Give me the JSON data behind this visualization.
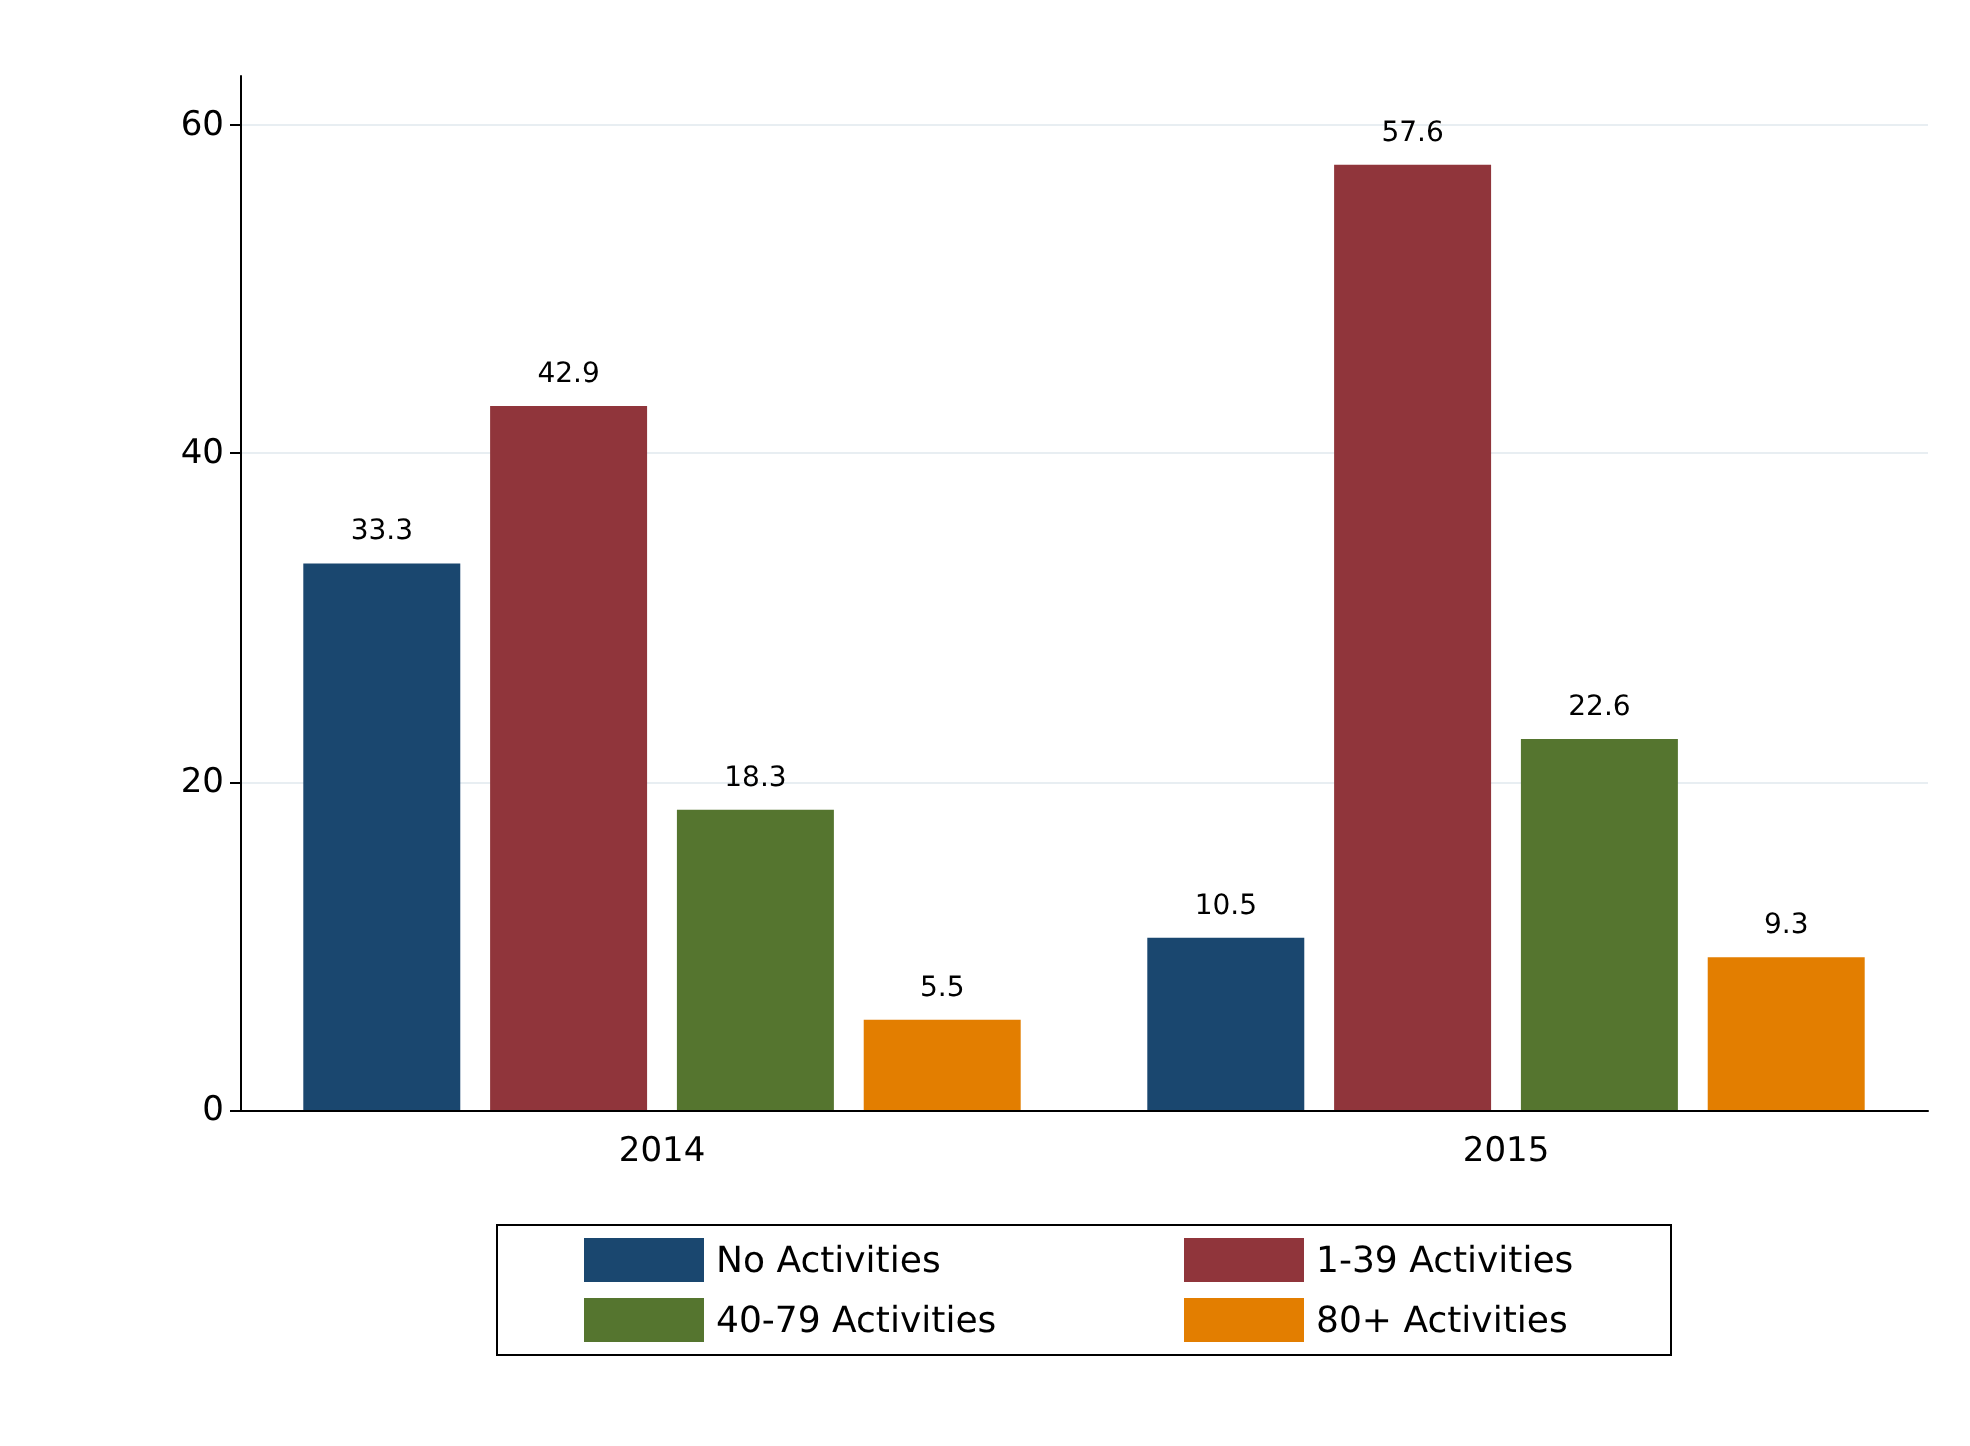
{
  "chart_data": {
    "type": "bar",
    "categories": [
      "2014",
      "2015"
    ],
    "series": [
      {
        "name": "No Activities",
        "color": "#1a476f",
        "values": [
          33.3,
          10.5
        ]
      },
      {
        "name": "1-39 Activities",
        "color": "#90353b",
        "values": [
          42.9,
          57.6
        ]
      },
      {
        "name": "40-79 Activities",
        "color": "#55752f",
        "values": [
          18.3,
          22.6
        ]
      },
      {
        "name": "80+ Activities",
        "color": "#e37e00",
        "values": [
          5.5,
          9.3
        ]
      }
    ],
    "ylim": [
      0,
      63
    ],
    "yticks": [
      0,
      20,
      40,
      60
    ],
    "grid": "y",
    "legend": "bottom",
    "data_labels": true
  }
}
